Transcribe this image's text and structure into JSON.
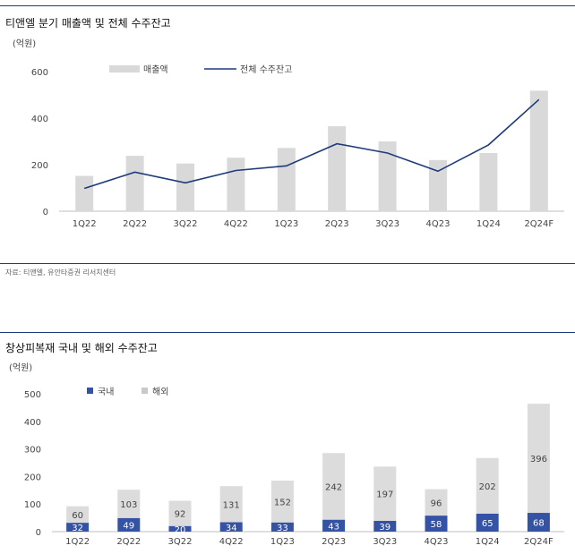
{
  "top": {
    "title": "티앤엘 분기 매출액 및 전체 수주잔고",
    "source": "자료: 티앤엘, 유안타증권 리서치센터"
  },
  "bottom": {
    "title": "창상피복재 국내 및 해외 수주잔고"
  },
  "colors": {
    "rule": "#1f3b7a",
    "bar_gray": "#d9d9d9",
    "line_navy": "#1f3b7a",
    "bar_navy": "#3553a4",
    "bar_light": "#dcdcdc"
  },
  "chart_data": [
    {
      "type": "bar",
      "title": "티앤엘 분기 매출액 및 전체 수주잔고",
      "unit_label": "(억원)",
      "categories": [
        "1Q22",
        "2Q22",
        "3Q22",
        "4Q22",
        "1Q23",
        "2Q23",
        "3Q23",
        "4Q23",
        "1Q24",
        "2Q24F"
      ],
      "series": [
        {
          "name": "매출액",
          "kind": "bar",
          "color": "#d9d9d9",
          "values": [
            152,
            238,
            205,
            230,
            272,
            365,
            300,
            220,
            250,
            518
          ]
        },
        {
          "name": "전체 수주잔고",
          "kind": "line",
          "color": "#1f3b7a",
          "values": [
            98,
            168,
            122,
            175,
            195,
            290,
            250,
            172,
            285,
            480
          ]
        }
      ],
      "y_ticks": [
        0,
        200,
        400,
        600
      ],
      "ylim": [
        0,
        600
      ],
      "legend": "top-center",
      "grid": false
    },
    {
      "type": "bar",
      "stacked": true,
      "title": "창상피복재 국내 및 해외 수주잔고",
      "unit_label": "(억원)",
      "categories": [
        "1Q22",
        "2Q22",
        "3Q22",
        "4Q22",
        "1Q23",
        "2Q23",
        "3Q23",
        "4Q23",
        "1Q24",
        "2Q24F"
      ],
      "series": [
        {
          "name": "국내",
          "color": "#3553a4",
          "values": [
            32,
            49,
            20,
            34,
            33,
            43,
            39,
            58,
            65,
            68
          ]
        },
        {
          "name": "해외",
          "color": "#dcdcdc",
          "values": [
            60,
            103,
            92,
            131,
            152,
            242,
            197,
            96,
            202,
            396
          ]
        }
      ],
      "y_ticks": [
        0,
        100,
        200,
        300,
        400,
        500
      ],
      "ylim": [
        0,
        500
      ],
      "legend": "top-left",
      "grid": false,
      "data_labels": true
    }
  ]
}
